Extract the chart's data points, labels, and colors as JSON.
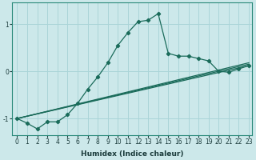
{
  "xlabel": "Humidex (Indice chaleur)",
  "bg_color": "#cce8ea",
  "grid_color": "#aad4d8",
  "line_color": "#1a6b5a",
  "x_min": -0.5,
  "x_max": 23.3,
  "y_min": -1.35,
  "y_max": 1.45,
  "line1_x": [
    0,
    1,
    2,
    3,
    4,
    5,
    6,
    7,
    8,
    9,
    10,
    11,
    12,
    13,
    14,
    15,
    16,
    17,
    18,
    19,
    20,
    21,
    22,
    23
  ],
  "line1_y": [
    -1.0,
    -1.1,
    -1.22,
    -1.07,
    -1.07,
    -0.92,
    -0.68,
    -0.38,
    -0.12,
    0.18,
    0.55,
    0.82,
    1.05,
    1.08,
    1.22,
    0.38,
    0.32,
    0.32,
    0.27,
    0.22,
    0.0,
    -0.02,
    0.05,
    0.12
  ],
  "line2_x": [
    0,
    23
  ],
  "line2_y": [
    -1.0,
    0.12
  ],
  "line3_x": [
    0,
    23
  ],
  "line3_y": [
    -1.0,
    0.15
  ],
  "line4_x": [
    0,
    23
  ],
  "line4_y": [
    -1.0,
    0.18
  ],
  "yticks": [
    -1,
    0,
    1
  ],
  "xticks": [
    0,
    1,
    2,
    3,
    4,
    5,
    6,
    7,
    8,
    9,
    10,
    11,
    12,
    13,
    14,
    15,
    16,
    17,
    18,
    19,
    20,
    21,
    22,
    23
  ]
}
